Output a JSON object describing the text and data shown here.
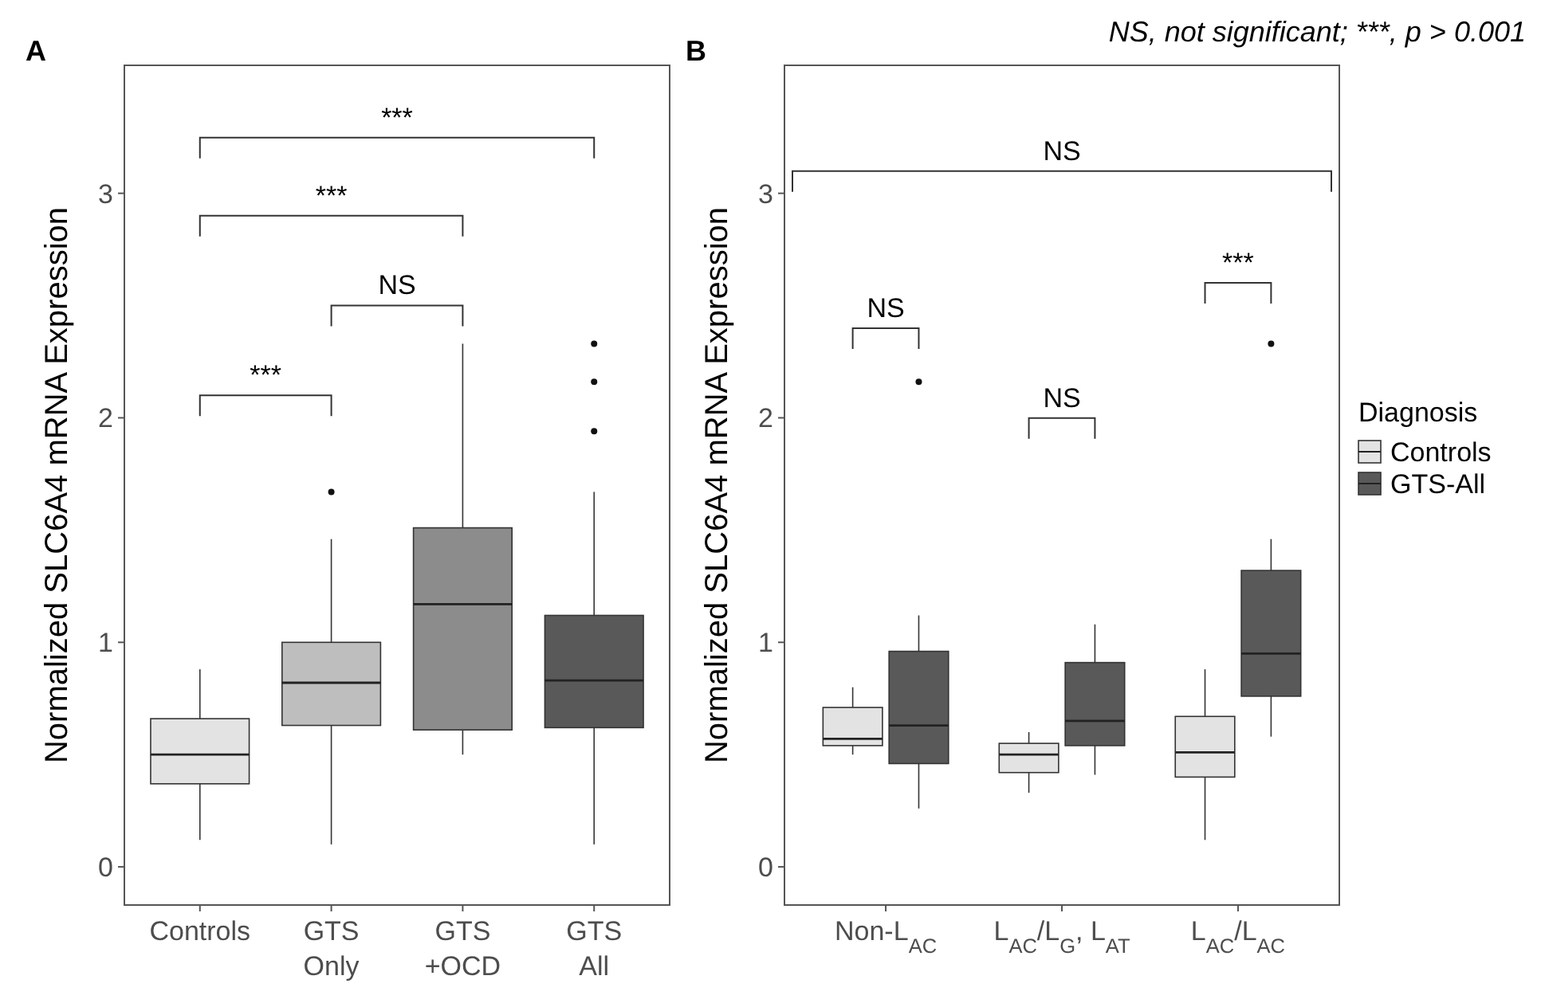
{
  "chart_data": [
    {
      "type": "box",
      "title": "A",
      "ylabel": "Normalized SLC6A4 mRNA Expression",
      "categories": [
        "Controls",
        "GTS\nOnly",
        "GTS\n+OCD",
        "GTS\nAll"
      ],
      "colors": [
        "#e3e3e3",
        "#bebebe",
        "#8c8c8c",
        "#595959"
      ],
      "boxes": [
        {
          "low": 0.12,
          "q1": 0.37,
          "median": 0.5,
          "q3": 0.66,
          "high": 0.88
        },
        {
          "low": 0.1,
          "q1": 0.63,
          "median": 0.82,
          "q3": 1.0,
          "high": 1.46,
          "outliers": [
            1.67
          ]
        },
        {
          "low": 0.5,
          "q1": 0.61,
          "median": 1.17,
          "q3": 1.51,
          "high": 2.33
        },
        {
          "low": 0.1,
          "q1": 0.62,
          "median": 0.83,
          "q3": 1.12,
          "high": 1.67,
          "outliers": [
            1.94,
            2.16,
            2.33
          ]
        }
      ],
      "ylim": [
        -0.17,
        3.57
      ],
      "yticks": [
        0,
        1,
        2,
        3
      ],
      "grid": false,
      "annotations": [
        "***",
        "NS",
        "***",
        "***"
      ]
    },
    {
      "type": "box",
      "title": "B",
      "ylabel": "Normalized SLC6A4 mRNA Expression",
      "categories": [
        "Non-L$_{AC}$",
        "L$_{AC}$/L$_{G}$, L$_{AT}$",
        "L$_{AC}$/L$_{AC}$"
      ],
      "series": [
        {
          "name": "Controls",
          "color": "#e3e3e3",
          "boxes": [
            {
              "low": 0.5,
              "q1": 0.54,
              "median": 0.57,
              "q3": 0.71,
              "high": 0.8
            },
            {
              "low": 0.33,
              "q1": 0.42,
              "median": 0.5,
              "q3": 0.55,
              "high": 0.6
            },
            {
              "low": 0.12,
              "q1": 0.4,
              "median": 0.51,
              "q3": 0.67,
              "high": 0.88
            }
          ]
        },
        {
          "name": "GTS-All",
          "color": "#595959",
          "boxes": [
            {
              "low": 0.26,
              "q1": 0.46,
              "median": 0.63,
              "q3": 0.96,
              "high": 1.12,
              "outliers": [
                2.16
              ]
            },
            {
              "low": 0.41,
              "q1": 0.54,
              "median": 0.65,
              "q3": 0.91,
              "high": 1.08
            },
            {
              "low": 0.58,
              "q1": 0.76,
              "median": 0.95,
              "q3": 1.32,
              "high": 1.46,
              "outliers": [
                2.33
              ]
            }
          ]
        }
      ],
      "ylim": [
        -0.17,
        3.57
      ],
      "yticks": [
        0,
        1,
        2,
        3
      ],
      "grid": false,
      "legend": "right",
      "legend_title": "Diagnosis",
      "annotations": [
        "NS",
        "NS",
        "NS",
        "***",
        "NS, not significant; ***, p > 0.001"
      ]
    }
  ]
}
